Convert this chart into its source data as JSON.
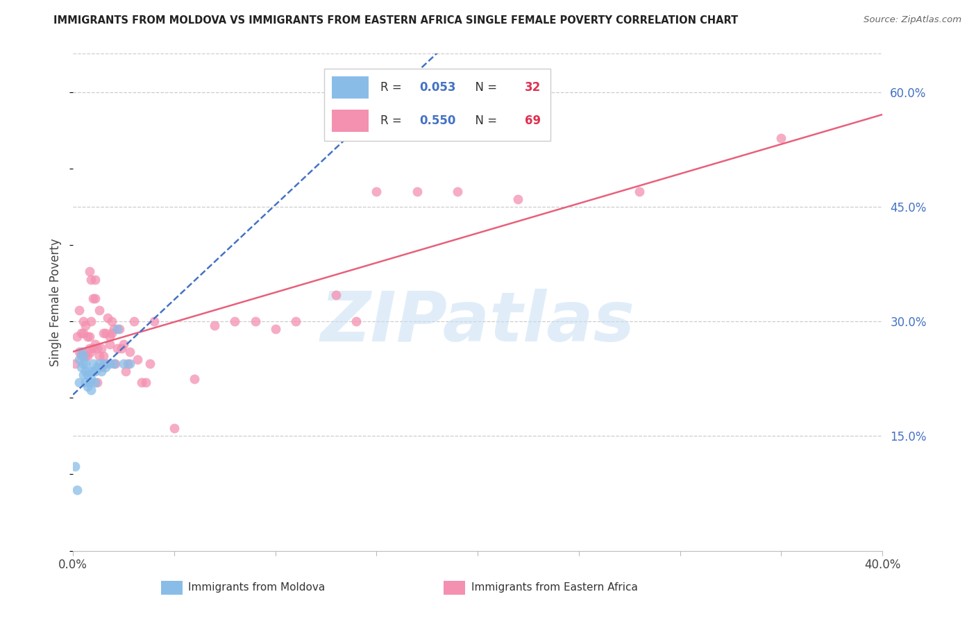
{
  "title": "IMMIGRANTS FROM MOLDOVA VS IMMIGRANTS FROM EASTERN AFRICA SINGLE FEMALE POVERTY CORRELATION CHART",
  "source": "Source: ZipAtlas.com",
  "ylabel": "Single Female Poverty",
  "y_tick_values": [
    0.15,
    0.3,
    0.45,
    0.6
  ],
  "x_lim": [
    0.0,
    0.4
  ],
  "y_lim": [
    0.0,
    0.65
  ],
  "moldova_color": "#89bde8",
  "eastern_africa_color": "#f490b0",
  "trend_moldova_color": "#4472c4",
  "trend_eastern_africa_color": "#e8607a",
  "watermark": "ZIPatlas",
  "moldova_R": "0.053",
  "moldova_N": "32",
  "eastern_africa_R": "0.550",
  "eastern_africa_N": "69",
  "moldova_scatter_x": [
    0.001,
    0.002,
    0.003,
    0.003,
    0.004,
    0.004,
    0.005,
    0.005,
    0.005,
    0.006,
    0.006,
    0.006,
    0.007,
    0.007,
    0.008,
    0.008,
    0.009,
    0.009,
    0.01,
    0.01,
    0.011,
    0.011,
    0.012,
    0.013,
    0.014,
    0.015,
    0.016,
    0.018,
    0.02,
    0.022,
    0.025,
    0.028
  ],
  "moldova_scatter_y": [
    0.11,
    0.08,
    0.22,
    0.25,
    0.24,
    0.26,
    0.23,
    0.245,
    0.255,
    0.22,
    0.235,
    0.245,
    0.215,
    0.23,
    0.22,
    0.235,
    0.21,
    0.225,
    0.235,
    0.245,
    0.22,
    0.235,
    0.24,
    0.245,
    0.235,
    0.245,
    0.24,
    0.245,
    0.245,
    0.29,
    0.245,
    0.245
  ],
  "eastern_africa_scatter_x": [
    0.001,
    0.002,
    0.003,
    0.003,
    0.004,
    0.004,
    0.005,
    0.005,
    0.005,
    0.006,
    0.006,
    0.007,
    0.007,
    0.008,
    0.008,
    0.008,
    0.009,
    0.009,
    0.009,
    0.01,
    0.01,
    0.011,
    0.011,
    0.011,
    0.012,
    0.012,
    0.013,
    0.013,
    0.014,
    0.014,
    0.015,
    0.015,
    0.016,
    0.016,
    0.017,
    0.018,
    0.018,
    0.019,
    0.019,
    0.02,
    0.021,
    0.022,
    0.023,
    0.024,
    0.025,
    0.026,
    0.027,
    0.028,
    0.03,
    0.032,
    0.034,
    0.036,
    0.038,
    0.04,
    0.05,
    0.06,
    0.07,
    0.08,
    0.09,
    0.1,
    0.11,
    0.13,
    0.14,
    0.15,
    0.17,
    0.19,
    0.22,
    0.28,
    0.35
  ],
  "eastern_africa_scatter_y": [
    0.245,
    0.28,
    0.26,
    0.315,
    0.255,
    0.285,
    0.26,
    0.285,
    0.3,
    0.255,
    0.295,
    0.255,
    0.28,
    0.265,
    0.28,
    0.365,
    0.26,
    0.3,
    0.355,
    0.33,
    0.265,
    0.27,
    0.33,
    0.355,
    0.22,
    0.265,
    0.255,
    0.315,
    0.24,
    0.265,
    0.255,
    0.285,
    0.245,
    0.285,
    0.305,
    0.28,
    0.27,
    0.285,
    0.3,
    0.29,
    0.245,
    0.265,
    0.29,
    0.265,
    0.27,
    0.235,
    0.245,
    0.26,
    0.3,
    0.25,
    0.22,
    0.22,
    0.245,
    0.3,
    0.16,
    0.225,
    0.295,
    0.3,
    0.3,
    0.29,
    0.3,
    0.335,
    0.3,
    0.47,
    0.47,
    0.47,
    0.46,
    0.47,
    0.54
  ]
}
